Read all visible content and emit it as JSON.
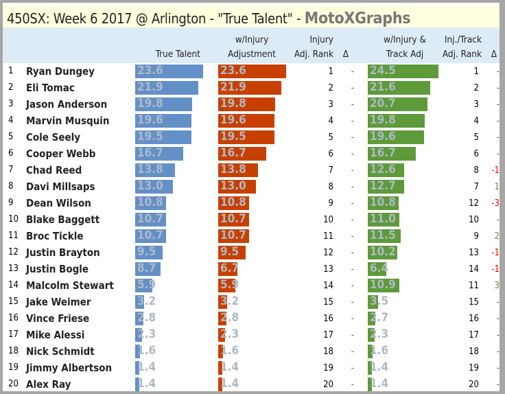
{
  "title": "450SX: Week 6 2017 @ Arlington - \"True Talent\" - ",
  "brand": "MotoXGraphs",
  "headers": {
    "true_talent": "True Talent",
    "inj_adj_1": "w/Injury",
    "inj_adj_2": "Adjustment",
    "inj_rank_1": "Injury",
    "inj_rank_2": "Adj. Rank",
    "delta1": "Δ",
    "track_1": "w/Injury &",
    "track_2": "Track Adj",
    "track_rank_1": "Inj./Track",
    "track_rank_2": "Adj. Rank",
    "delta2": "Δ"
  },
  "colors": {
    "true_talent": "#6490c8",
    "injury": "#c84000",
    "track": "#5e9a3a",
    "neg": "#ff0000",
    "pos": "#7a8a3a",
    "dash": "#2e7d32"
  },
  "chart_data": {
    "type": "table",
    "columns": [
      "#",
      "Rider",
      "True Talent",
      "w/Injury Adjustment",
      "Injury Adj. Rank",
      "Δ",
      "w/Injury & Track Adj",
      "Inj./Track Adj. Rank",
      "Δ"
    ],
    "rows": [
      {
        "rank": "1",
        "name": "Ryan Dungey",
        "tt": 23.6,
        "inj": 23.6,
        "inj_rank": "1",
        "d1": "-",
        "trk": 24.5,
        "trk_rank": "1",
        "d2": "-"
      },
      {
        "rank": "2",
        "name": "Eli Tomac",
        "tt": 21.9,
        "inj": 21.9,
        "inj_rank": "2",
        "d1": "-",
        "trk": 21.6,
        "trk_rank": "2",
        "d2": "-"
      },
      {
        "rank": "3",
        "name": "Jason Anderson",
        "tt": 19.8,
        "inj": 19.8,
        "inj_rank": "3",
        "d1": "-",
        "trk": 20.7,
        "trk_rank": "3",
        "d2": "-"
      },
      {
        "rank": "4",
        "name": "Marvin Musquin",
        "tt": 19.6,
        "inj": 19.6,
        "inj_rank": "4",
        "d1": "-",
        "trk": 19.8,
        "trk_rank": "4",
        "d2": "-"
      },
      {
        "rank": "5",
        "name": "Cole Seely",
        "tt": 19.5,
        "inj": 19.5,
        "inj_rank": "5",
        "d1": "-",
        "trk": 19.6,
        "trk_rank": "5",
        "d2": "-"
      },
      {
        "rank": "6",
        "name": "Cooper Webb",
        "tt": 16.7,
        "inj": 16.7,
        "inj_rank": "6",
        "d1": "-",
        "trk": 16.7,
        "trk_rank": "6",
        "d2": "-"
      },
      {
        "rank": "7",
        "name": "Chad Reed",
        "tt": 13.8,
        "inj": 13.8,
        "inj_rank": "7",
        "d1": "-",
        "trk": 12.6,
        "trk_rank": "8",
        "d2": "-1"
      },
      {
        "rank": "8",
        "name": "Davi Millsaps",
        "tt": 13.0,
        "inj": 13.0,
        "inj_rank": "8",
        "d1": "-",
        "trk": 12.7,
        "trk_rank": "7",
        "d2": "1"
      },
      {
        "rank": "9",
        "name": "Dean Wilson",
        "tt": 10.8,
        "inj": 10.8,
        "inj_rank": "9",
        "d1": "-",
        "trk": 10.8,
        "trk_rank": "12",
        "d2": "-3"
      },
      {
        "rank": "10",
        "name": "Blake Baggett",
        "tt": 10.7,
        "inj": 10.7,
        "inj_rank": "10",
        "d1": "-",
        "trk": 11.0,
        "trk_rank": "10",
        "d2": "-"
      },
      {
        "rank": "11",
        "name": "Broc Tickle",
        "tt": 10.7,
        "inj": 10.7,
        "inj_rank": "11",
        "d1": "-",
        "trk": 11.5,
        "trk_rank": "9",
        "d2": "2"
      },
      {
        "rank": "12",
        "name": "Justin Brayton",
        "tt": 9.5,
        "inj": 9.5,
        "inj_rank": "12",
        "d1": "-",
        "trk": 10.2,
        "trk_rank": "13",
        "d2": "-1"
      },
      {
        "rank": "13",
        "name": "Justin Bogle",
        "tt": 8.7,
        "inj": 6.7,
        "inj_rank": "13",
        "d1": "-",
        "trk": 6.4,
        "trk_rank": "14",
        "d2": "-1"
      },
      {
        "rank": "14",
        "name": "Malcolm Stewart",
        "tt": 5.9,
        "inj": 5.9,
        "inj_rank": "14",
        "d1": "-",
        "trk": 10.9,
        "trk_rank": "11",
        "d2": "3"
      },
      {
        "rank": "15",
        "name": "Jake Weimer",
        "tt": 3.2,
        "inj": 3.2,
        "inj_rank": "15",
        "d1": "-",
        "trk": 3.5,
        "trk_rank": "15",
        "d2": "-"
      },
      {
        "rank": "16",
        "name": "Vince Friese",
        "tt": 2.8,
        "inj": 2.8,
        "inj_rank": "16",
        "d1": "-",
        "trk": 2.7,
        "trk_rank": "16",
        "d2": "-"
      },
      {
        "rank": "17",
        "name": "Mike Alessi",
        "tt": 2.3,
        "inj": 2.3,
        "inj_rank": "17",
        "d1": "-",
        "trk": 2.3,
        "trk_rank": "17",
        "d2": "-"
      },
      {
        "rank": "18",
        "name": "Nick Schmidt",
        "tt": 1.6,
        "inj": 1.6,
        "inj_rank": "18",
        "d1": "-",
        "trk": 1.6,
        "trk_rank": "18",
        "d2": "-"
      },
      {
        "rank": "19",
        "name": "Jimmy Albertson",
        "tt": 1.4,
        "inj": 1.4,
        "inj_rank": "19",
        "d1": "-",
        "trk": 1.4,
        "trk_rank": "19",
        "d2": "-"
      },
      {
        "rank": "20",
        "name": "Alex Ray",
        "tt": 1.4,
        "inj": 1.4,
        "inj_rank": "20",
        "d1": "-",
        "trk": 1.4,
        "trk_rank": "20",
        "d2": "-"
      }
    ]
  }
}
